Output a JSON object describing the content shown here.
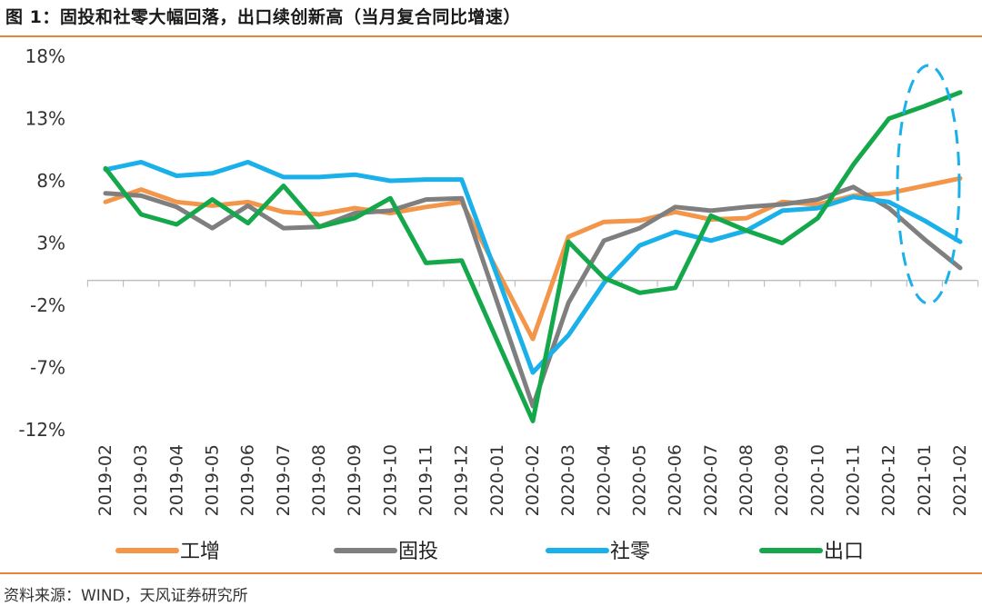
{
  "header": {
    "title": "图 1：固投和社零大幅回落，出口续创新高（当月复合同比增速）"
  },
  "footer": {
    "source": "资料来源：WIND，天风证券研究所"
  },
  "colors": {
    "accent_rule": "#e8833a",
    "工增": "#f4964a",
    "固投": "#7f7f7f",
    "社零": "#1ab0ea",
    "出口": "#14a84b",
    "highlight_ellipse": "#1ab0ea"
  },
  "chart_data": {
    "type": "line",
    "title": "",
    "xlabel": "",
    "ylabel": "",
    "ylim": [
      -12,
      18
    ],
    "yticks": [
      18,
      13,
      8,
      3,
      -2,
      -7,
      -12
    ],
    "ytick_labels": [
      "18%",
      "13%",
      "8%",
      "3%",
      "-2%",
      "-7%",
      "-12%"
    ],
    "grid": false,
    "legend_position": "bottom",
    "categories": [
      "2019-02",
      "2019-03",
      "2019-04",
      "2019-05",
      "2019-06",
      "2019-07",
      "2019-08",
      "2019-09",
      "2019-10",
      "2019-11",
      "2019-12",
      "2020-01",
      "2020-02",
      "2020-03",
      "2020-04",
      "2020-05",
      "2020-06",
      "2020-07",
      "2020-08",
      "2020-09",
      "2020-10",
      "2020-11",
      "2020-12",
      "2021-01",
      "2021-02"
    ],
    "series": [
      {
        "name": "工增",
        "color": "#f4964a",
        "values": [
          6.3,
          7.3,
          6.3,
          6.0,
          6.3,
          5.5,
          5.3,
          5.8,
          5.4,
          5.9,
          6.3,
          null,
          -4.7,
          3.5,
          4.7,
          4.8,
          5.5,
          4.9,
          5.0,
          6.3,
          6.1,
          6.8,
          7.0,
          7.6,
          8.2
        ]
      },
      {
        "name": "固投",
        "color": "#7f7f7f",
        "values": [
          7.0,
          6.8,
          5.9,
          4.2,
          6.0,
          4.2,
          4.3,
          5.4,
          5.6,
          6.5,
          6.6,
          null,
          -10.1,
          -1.8,
          3.2,
          4.2,
          5.9,
          5.6,
          5.9,
          6.1,
          6.5,
          7.5,
          5.8,
          3.3,
          1.0
        ]
      },
      {
        "name": "社零",
        "color": "#1ab0ea",
        "values": [
          8.9,
          9.5,
          8.4,
          8.6,
          9.5,
          8.3,
          8.3,
          8.5,
          8.0,
          8.1,
          8.1,
          null,
          -7.4,
          -4.4,
          -0.2,
          2.8,
          3.9,
          3.2,
          4.0,
          5.6,
          5.8,
          6.7,
          6.3,
          4.8,
          3.1
        ]
      },
      {
        "name": "出口",
        "color": "#14a84b",
        "values": [
          9.0,
          5.3,
          4.5,
          6.5,
          4.6,
          7.6,
          4.3,
          5.0,
          6.6,
          1.4,
          1.6,
          null,
          -11.3,
          3.1,
          0.2,
          -1.0,
          -0.6,
          5.2,
          4.0,
          3.0,
          5.0,
          9.3,
          13.0,
          14.0,
          15.1
        ]
      }
    ]
  }
}
